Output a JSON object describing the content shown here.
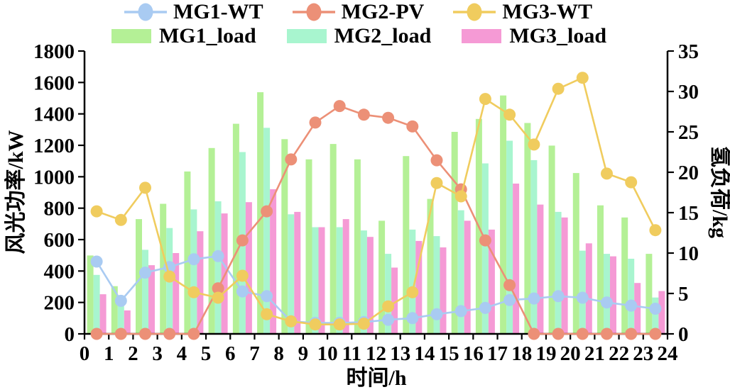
{
  "chart_data": {
    "type": "combo-bar-line",
    "title": "",
    "x": {
      "label": "时间/h",
      "range": [
        0,
        24
      ],
      "tick_step": 1,
      "tick_labels": [
        "0",
        "1",
        "2",
        "3",
        "4",
        "5",
        "6",
        "7",
        "8",
        "9",
        "10",
        "11",
        "12",
        "13",
        "14",
        "15",
        "16",
        "17",
        "18",
        "19",
        "20",
        "21",
        "22",
        "23",
        "24"
      ],
      "note": "24 hourly points plotted at half-hour group centers"
    },
    "y_left": {
      "label": "风光功率/kW",
      "range": [
        0,
        1800
      ],
      "tick_step": 200,
      "tick_labels": [
        "0",
        "200",
        "400",
        "600",
        "800",
        "1000",
        "1200",
        "1400",
        "1600",
        "1800"
      ]
    },
    "y_right": {
      "label": "氢负荷/kg",
      "range": [
        0,
        35
      ],
      "tick_step": 5,
      "tick_labels": [
        "0",
        "5",
        "10",
        "15",
        "20",
        "25",
        "30",
        "35"
      ]
    },
    "hours": [
      1,
      2,
      3,
      4,
      5,
      6,
      7,
      8,
      9,
      10,
      11,
      12,
      13,
      14,
      15,
      16,
      17,
      18,
      19,
      20,
      21,
      22,
      23,
      24
    ],
    "series": [
      {
        "name": "MG1-WT",
        "type": "line",
        "axis": "left",
        "unit": "kW",
        "color": "#a9cbf2",
        "values": [
          460,
          210,
          390,
          425,
          475,
          495,
          270,
          240,
          80,
          70,
          70,
          75,
          90,
          100,
          125,
          145,
          165,
          215,
          225,
          240,
          230,
          200,
          180,
          160
        ]
      },
      {
        "name": "MG2-PV",
        "type": "line",
        "axis": "left",
        "unit": "kW",
        "color": "#ec9077",
        "values": [
          0,
          0,
          0,
          0,
          0,
          290,
          595,
          780,
          1110,
          1345,
          1450,
          1395,
          1375,
          1320,
          1105,
          920,
          595,
          310,
          0,
          0,
          0,
          0,
          0,
          0
        ]
      },
      {
        "name": "MG3-WT",
        "type": "line",
        "axis": "left",
        "unit": "kW",
        "color": "#f0cc5e",
        "values": [
          780,
          725,
          930,
          365,
          265,
          230,
          370,
          125,
          80,
          60,
          60,
          65,
          175,
          265,
          960,
          875,
          1495,
          1395,
          1205,
          1560,
          1630,
          1020,
          965,
          660
        ]
      },
      {
        "name": "MG1_load",
        "type": "bar",
        "axis": "right",
        "unit": "kg",
        "color": "#b4f096",
        "values": [
          9.7,
          5.9,
          14.2,
          16.1,
          20.1,
          23.0,
          26.0,
          29.9,
          24.1,
          21.6,
          23.5,
          21.6,
          14.0,
          22.0,
          16.7,
          25.0,
          26.6,
          29.5,
          26.1,
          23.3,
          19.9,
          15.9,
          14.4,
          9.9
        ]
      },
      {
        "name": "MG2_load",
        "type": "bar",
        "axis": "right",
        "unit": "kg",
        "color": "#a8f5cf",
        "values": [
          7.3,
          4.1,
          10.4,
          13.1,
          15.4,
          16.4,
          22.5,
          25.5,
          14.8,
          13.2,
          13.2,
          12.8,
          9.9,
          12.9,
          12.1,
          15.3,
          21.1,
          23.9,
          21.5,
          15.1,
          10.3,
          9.9,
          9.3,
          4.5
        ]
      },
      {
        "name": "MG3_load",
        "type": "bar",
        "axis": "right",
        "unit": "kg",
        "color": "#f59ad5",
        "values": [
          4.9,
          2.9,
          8.5,
          10.0,
          12.7,
          14.9,
          16.3,
          17.9,
          15.1,
          13.2,
          14.2,
          12.0,
          8.2,
          11.5,
          10.7,
          14.0,
          12.9,
          18.6,
          16.0,
          14.4,
          11.2,
          9.6,
          6.3,
          5.3
        ]
      }
    ],
    "legend": {
      "position": "top",
      "rows": [
        [
          "MG1-WT",
          "MG2-PV",
          "MG3-WT"
        ],
        [
          "MG1_load",
          "MG2_load",
          "MG3_load"
        ]
      ]
    },
    "grid": "off",
    "axis_color": "#000000"
  }
}
